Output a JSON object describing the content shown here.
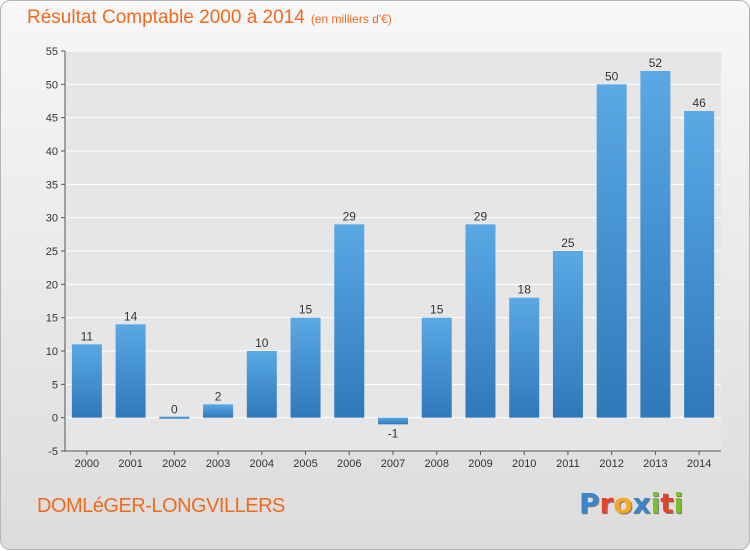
{
  "header": {
    "title": "Résultat Comptable 2000 à 2014",
    "subtitle": "(en milliers d'€)"
  },
  "footer": {
    "commune": "DOMLéGER-LONGVILLERS",
    "logo_letters": [
      {
        "ch": "P",
        "color": "#3a84c8"
      },
      {
        "ch": "r",
        "color": "#e8402a"
      },
      {
        "ch": "o",
        "color": "#f5a623"
      },
      {
        "ch": "x",
        "color": "#3a84c8"
      },
      {
        "ch": "i",
        "color": "#7cbf2f"
      },
      {
        "ch": "t",
        "color": "#e8402a"
      },
      {
        "ch": "i",
        "color": "#7cbf2f"
      }
    ]
  },
  "colors": {
    "accent": "#f06a1e",
    "bar_top": "#5aa8e4",
    "bar_bottom": "#2f79bb"
  },
  "chart_data": {
    "type": "bar",
    "title": "Résultat Comptable 2000 à 2014",
    "subtitle": "(en milliers d'€)",
    "categories": [
      "2000",
      "2001",
      "2002",
      "2003",
      "2004",
      "2005",
      "2006",
      "2007",
      "2008",
      "2009",
      "2010",
      "2011",
      "2012",
      "2013",
      "2014"
    ],
    "values": [
      11,
      14,
      0,
      2,
      10,
      15,
      29,
      -1,
      15,
      29,
      18,
      25,
      50,
      52,
      46
    ],
    "ylim": [
      -5,
      55
    ],
    "yticks": [
      -5,
      0,
      5,
      10,
      15,
      20,
      25,
      30,
      35,
      40,
      45,
      50,
      55
    ],
    "grid": true,
    "legend": "none"
  }
}
